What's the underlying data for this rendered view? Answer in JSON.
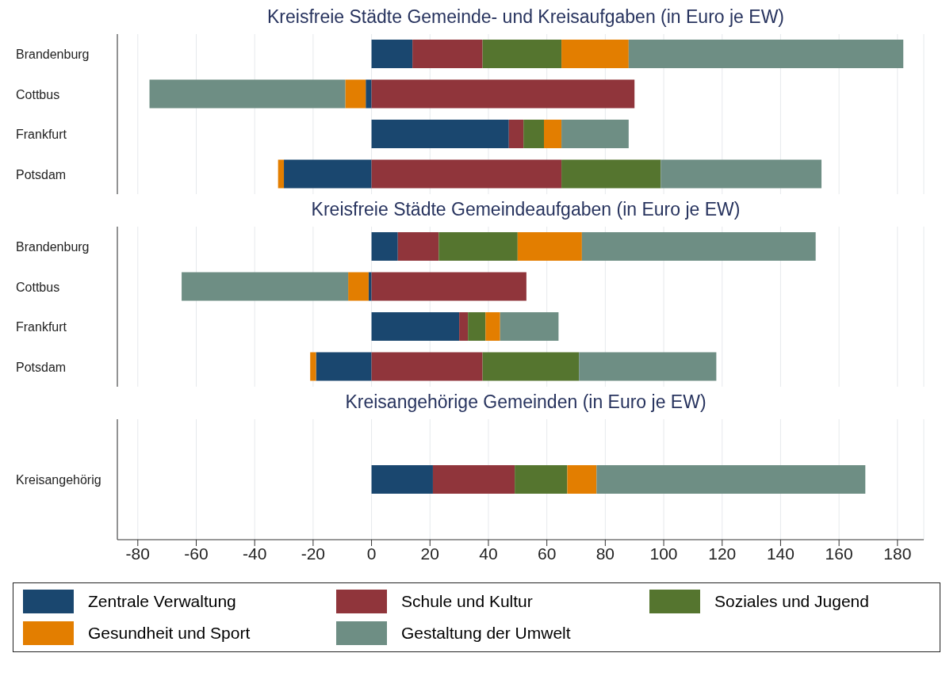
{
  "chart_data": [
    {
      "type": "bar",
      "orientation": "horizontal",
      "stacked": true,
      "title": "Kreisfreie Städte Gemeinde- und Kreisaufgaben (in Euro je EW)",
      "categories": [
        "Brandenburg",
        "Cottbus",
        "Frankfurt",
        "Potsdam"
      ],
      "xlim": [
        -87,
        189
      ],
      "xticks": [
        -80,
        -60,
        -40,
        -20,
        0,
        20,
        40,
        60,
        80,
        100,
        120,
        140,
        160,
        180
      ],
      "tick_labels": "y",
      "grid": "x",
      "legend": false,
      "series": [
        {
          "color": "#1a476f",
          "values": [
            14,
            -2,
            47,
            -30
          ]
        },
        {
          "color": "#90353b",
          "values": [
            24,
            90,
            5,
            65
          ]
        },
        {
          "color": "#55752f",
          "values": [
            27,
            0,
            7,
            34
          ]
        },
        {
          "color": "#e37e00",
          "values": [
            23,
            -7,
            6,
            -2
          ]
        },
        {
          "color": "#6e8e84",
          "values": [
            94,
            -67,
            23,
            55
          ]
        }
      ]
    },
    {
      "type": "bar",
      "orientation": "horizontal",
      "stacked": true,
      "title": "Kreisfreie Städte Gemeindeaufgaben (in Euro je EW)",
      "categories": [
        "Brandenburg",
        "Cottbus",
        "Frankfurt",
        "Potsdam"
      ],
      "xlim": [
        -87,
        189
      ],
      "xticks": [
        -80,
        -60,
        -40,
        -20,
        0,
        20,
        40,
        60,
        80,
        100,
        120,
        140,
        160,
        180
      ],
      "tick_labels": "y",
      "grid": "x",
      "legend": false,
      "series": [
        {
          "color": "#1a476f",
          "values": [
            9,
            -1,
            30,
            -19
          ]
        },
        {
          "color": "#90353b",
          "values": [
            14,
            53,
            3,
            38
          ]
        },
        {
          "color": "#55752f",
          "values": [
            27,
            0,
            6,
            33
          ]
        },
        {
          "color": "#e37e00",
          "values": [
            22,
            -7,
            5,
            -2
          ]
        },
        {
          "color": "#6e8e84",
          "values": [
            80,
            -57,
            20,
            47
          ]
        }
      ]
    },
    {
      "type": "bar",
      "orientation": "horizontal",
      "stacked": true,
      "title": "Kreisangehörige Gemeinden (in Euro je EW)",
      "categories": [
        "Kreisangehörig"
      ],
      "xlim": [
        -87,
        189
      ],
      "xticks": [
        -80,
        -60,
        -40,
        -20,
        0,
        20,
        40,
        60,
        80,
        100,
        120,
        140,
        160,
        180
      ],
      "grid": "x",
      "legend": "bottom",
      "series": [
        {
          "name": "Zentrale Verwaltung",
          "color": "#1a476f",
          "values": [
            21
          ]
        },
        {
          "name": "Schule und Kultur",
          "color": "#90353b",
          "values": [
            28
          ]
        },
        {
          "name": "Soziales und Jugend",
          "color": "#55752f",
          "values": [
            18
          ]
        },
        {
          "name": "Gesundheit und Sport",
          "color": "#e37e00",
          "values": [
            10
          ]
        },
        {
          "name": "Gestaltung der Umwelt",
          "color": "#6e8e84",
          "values": [
            92
          ]
        }
      ]
    }
  ]
}
